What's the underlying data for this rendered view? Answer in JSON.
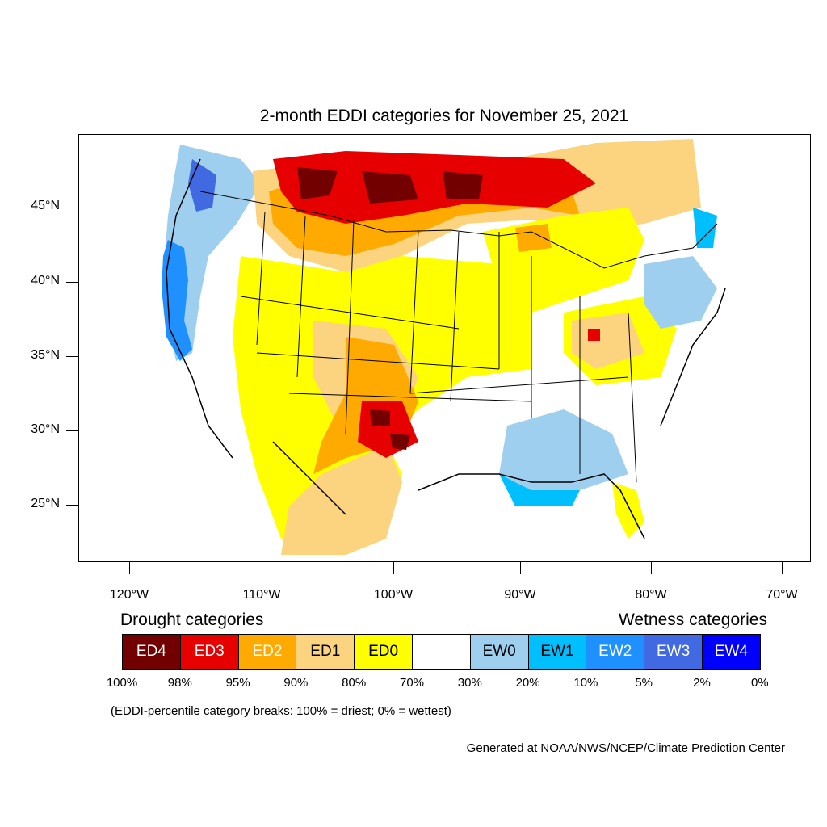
{
  "title": "2-month EDDI categories for November 25, 2021",
  "map": {
    "latitude_labels": [
      "45°N",
      "40°N",
      "35°N",
      "30°N",
      "25°N"
    ],
    "longitude_labels": [
      "120°W",
      "110°W",
      "100°W",
      "90°W",
      "80°W",
      "70°W"
    ]
  },
  "legend": {
    "drought_heading": "Drought categories",
    "wetness_heading": "Wetness categories",
    "categories": [
      {
        "label": "ED4",
        "color": "#730000",
        "text_color": "#ffffff"
      },
      {
        "label": "ED3",
        "color": "#e60000",
        "text_color": "#ffffff"
      },
      {
        "label": "ED2",
        "color": "#ffaa00",
        "text_color": "#ffffff"
      },
      {
        "label": "ED1",
        "color": "#fcd37f",
        "text_color": "#000000"
      },
      {
        "label": "ED0",
        "color": "#ffff00",
        "text_color": "#000000"
      },
      {
        "label": "",
        "color": "#ffffff",
        "text_color": "#000000"
      },
      {
        "label": "EW0",
        "color": "#9ecfee",
        "text_color": "#000000"
      },
      {
        "label": "EW1",
        "color": "#00bfff",
        "text_color": "#000000"
      },
      {
        "label": "EW2",
        "color": "#1e90ff",
        "text_color": "#ffffff"
      },
      {
        "label": "EW3",
        "color": "#4169e1",
        "text_color": "#ffffff"
      },
      {
        "label": "EW4",
        "color": "#0000ff",
        "text_color": "#ffffff"
      }
    ],
    "breaks": [
      "100%",
      "98%",
      "95%",
      "90%",
      "80%",
      "70%",
      "30%",
      "20%",
      "10%",
      "5%",
      "2%",
      "0%"
    ]
  },
  "note": "(EDDI-percentile category breaks: 100% = driest; 0% = wettest)",
  "credit": "Generated at NOAA/NWS/NCEP/Climate Prediction Center"
}
